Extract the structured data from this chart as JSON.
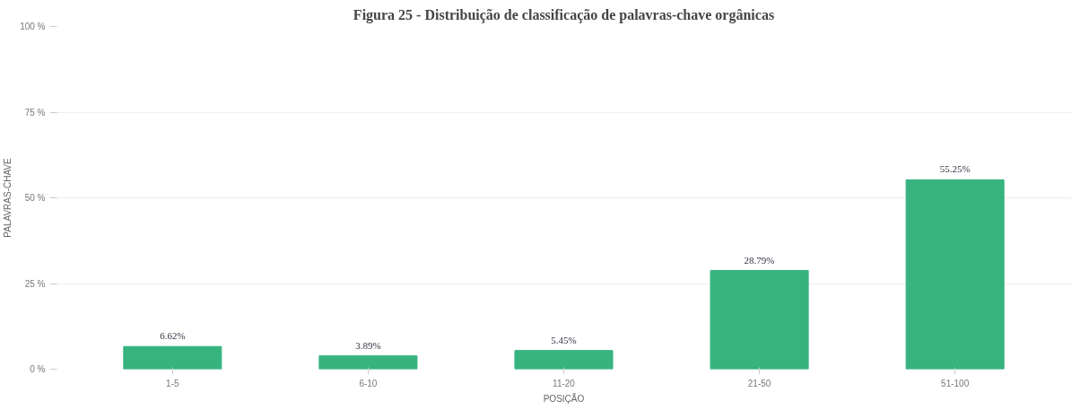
{
  "chart_data": {
    "type": "bar",
    "title": "Figura 25 - Distribuição de classificação de palavras-chave orgânicas",
    "xlabel": "POSIÇÃO",
    "ylabel": "PALAVRAS-CHAVE",
    "categories": [
      "1-5",
      "6-10",
      "11-20",
      "21-50",
      "51-100"
    ],
    "values": [
      6.62,
      3.89,
      5.45,
      28.79,
      55.25
    ],
    "value_labels": [
      "6.62%",
      "3.89%",
      "5.45%",
      "28.79%",
      "55.25%"
    ],
    "color": "#36b37e",
    "ylim": [
      0,
      100
    ],
    "yticks": [
      {
        "value": 0,
        "label": "0 %"
      },
      {
        "value": 25,
        "label": "25 %"
      },
      {
        "value": 50,
        "label": "50 %"
      },
      {
        "value": 75,
        "label": "75 %"
      },
      {
        "value": 100,
        "label": "100 %"
      }
    ],
    "grid": "y"
  }
}
